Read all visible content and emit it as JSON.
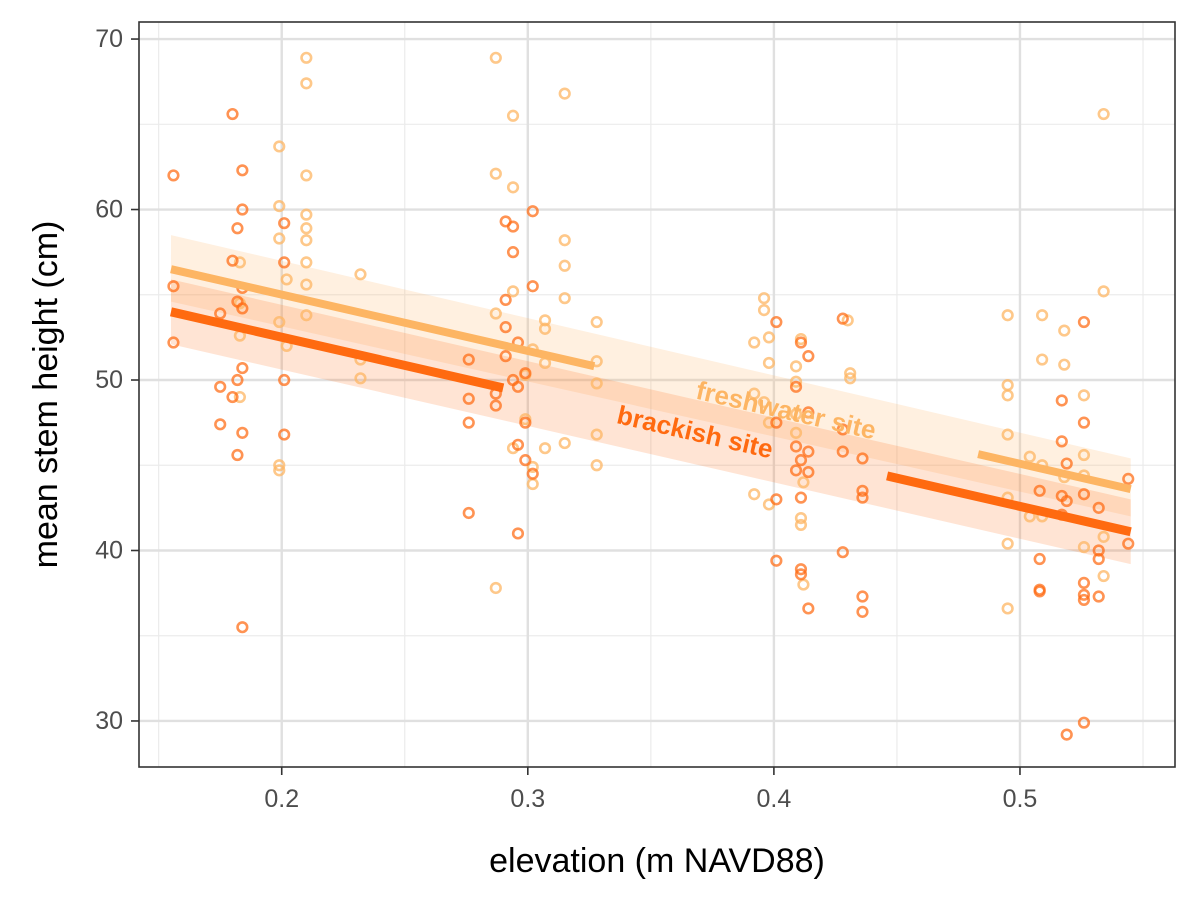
{
  "chart_data": {
    "type": "scatter",
    "title": "",
    "xlabel": "elevation (m NAVD88)",
    "ylabel": "mean stem height (cm)",
    "xlim": [
      0.142,
      0.563
    ],
    "ylim": [
      27.3,
      71.0
    ],
    "x_ticks": [
      0.2,
      0.3,
      0.4,
      0.5
    ],
    "x_tick_labels": [
      "0.2",
      "0.3",
      "0.4",
      "0.5"
    ],
    "y_ticks": [
      30,
      40,
      50,
      60,
      70
    ],
    "y_tick_labels": [
      "30",
      "40",
      "50",
      "60",
      "70"
    ],
    "grid": true,
    "legend": "none (series labelled directly on the lines)",
    "series": [
      {
        "name": "freshwater site",
        "color": "#fdb563",
        "fit": {
          "x": [
            0.155,
            0.545
          ],
          "y": [
            56.5,
            43.6
          ]
        },
        "ci_band": {
          "x": [
            0.155,
            0.545
          ],
          "lower": [
            54.6,
            42.0
          ],
          "upper": [
            58.5,
            45.4
          ]
        },
        "points": [
          [
            0.183,
            56.9
          ],
          [
            0.183,
            52.6
          ],
          [
            0.183,
            54.5
          ],
          [
            0.183,
            49.0
          ],
          [
            0.199,
            63.7
          ],
          [
            0.199,
            60.2
          ],
          [
            0.199,
            58.3
          ],
          [
            0.199,
            53.4
          ],
          [
            0.199,
            45.0
          ],
          [
            0.199,
            44.7
          ],
          [
            0.202,
            55.9
          ],
          [
            0.202,
            52.0
          ],
          [
            0.21,
            68.9
          ],
          [
            0.21,
            67.4
          ],
          [
            0.21,
            62.0
          ],
          [
            0.21,
            59.7
          ],
          [
            0.21,
            58.9
          ],
          [
            0.21,
            58.2
          ],
          [
            0.21,
            56.9
          ],
          [
            0.21,
            55.6
          ],
          [
            0.21,
            53.8
          ],
          [
            0.232,
            56.2
          ],
          [
            0.232,
            51.2
          ],
          [
            0.232,
            50.1
          ],
          [
            0.287,
            68.9
          ],
          [
            0.287,
            62.1
          ],
          [
            0.287,
            53.9
          ],
          [
            0.287,
            37.8
          ],
          [
            0.294,
            65.5
          ],
          [
            0.294,
            61.3
          ],
          [
            0.294,
            55.2
          ],
          [
            0.294,
            46.0
          ],
          [
            0.299,
            50.3
          ],
          [
            0.299,
            47.7
          ],
          [
            0.302,
            51.8
          ],
          [
            0.302,
            44.9
          ],
          [
            0.302,
            43.9
          ],
          [
            0.307,
            53.5
          ],
          [
            0.307,
            53.0
          ],
          [
            0.307,
            51.0
          ],
          [
            0.307,
            46.0
          ],
          [
            0.315,
            66.8
          ],
          [
            0.315,
            58.2
          ],
          [
            0.315,
            56.7
          ],
          [
            0.315,
            54.8
          ],
          [
            0.315,
            46.3
          ],
          [
            0.328,
            53.4
          ],
          [
            0.328,
            51.1
          ],
          [
            0.328,
            49.8
          ],
          [
            0.328,
            46.8
          ],
          [
            0.328,
            45.0
          ],
          [
            0.392,
            52.2
          ],
          [
            0.392,
            49.2
          ],
          [
            0.392,
            43.3
          ],
          [
            0.396,
            54.8
          ],
          [
            0.396,
            54.1
          ],
          [
            0.396,
            48.7
          ],
          [
            0.398,
            52.5
          ],
          [
            0.398,
            51.0
          ],
          [
            0.398,
            47.5
          ],
          [
            0.398,
            42.7
          ],
          [
            0.409,
            50.8
          ],
          [
            0.409,
            49.9
          ],
          [
            0.409,
            48.0
          ],
          [
            0.409,
            46.9
          ],
          [
            0.411,
            52.4
          ],
          [
            0.411,
            41.9
          ],
          [
            0.411,
            41.5
          ],
          [
            0.412,
            44.0
          ],
          [
            0.412,
            38.0
          ],
          [
            0.43,
            53.5
          ],
          [
            0.431,
            50.4
          ],
          [
            0.431,
            50.1
          ],
          [
            0.495,
            53.8
          ],
          [
            0.495,
            49.7
          ],
          [
            0.495,
            49.1
          ],
          [
            0.495,
            46.8
          ],
          [
            0.495,
            43.1
          ],
          [
            0.495,
            40.4
          ],
          [
            0.495,
            36.6
          ],
          [
            0.504,
            45.5
          ],
          [
            0.504,
            42.0
          ],
          [
            0.509,
            53.8
          ],
          [
            0.509,
            51.2
          ],
          [
            0.509,
            45.0
          ],
          [
            0.509,
            42.0
          ],
          [
            0.518,
            52.9
          ],
          [
            0.518,
            50.9
          ],
          [
            0.518,
            44.3
          ],
          [
            0.526,
            49.1
          ],
          [
            0.526,
            45.6
          ],
          [
            0.526,
            44.4
          ],
          [
            0.526,
            40.2
          ],
          [
            0.534,
            65.6
          ],
          [
            0.534,
            55.2
          ],
          [
            0.534,
            40.8
          ],
          [
            0.534,
            38.5
          ]
        ]
      },
      {
        "name": "brackish site",
        "color": "#ff6a10",
        "fit": {
          "x": [
            0.155,
            0.545
          ],
          "y": [
            54.0,
            41.1
          ]
        },
        "ci_band": {
          "x": [
            0.155,
            0.545
          ],
          "lower": [
            52.1,
            39.2
          ],
          "upper": [
            55.9,
            43.0
          ]
        },
        "points": [
          [
            0.156,
            62.0
          ],
          [
            0.156,
            55.5
          ],
          [
            0.156,
            52.2
          ],
          [
            0.175,
            53.9
          ],
          [
            0.175,
            49.6
          ],
          [
            0.175,
            47.4
          ],
          [
            0.18,
            65.6
          ],
          [
            0.18,
            57.0
          ],
          [
            0.18,
            49.0
          ],
          [
            0.182,
            58.9
          ],
          [
            0.182,
            54.6
          ],
          [
            0.182,
            50.0
          ],
          [
            0.182,
            45.6
          ],
          [
            0.184,
            62.3
          ],
          [
            0.184,
            60.0
          ],
          [
            0.184,
            55.4
          ],
          [
            0.184,
            54.2
          ],
          [
            0.184,
            50.7
          ],
          [
            0.184,
            46.9
          ],
          [
            0.184,
            35.5
          ],
          [
            0.201,
            59.2
          ],
          [
            0.201,
            56.9
          ],
          [
            0.201,
            50.0
          ],
          [
            0.201,
            46.8
          ],
          [
            0.276,
            51.2
          ],
          [
            0.276,
            48.9
          ],
          [
            0.276,
            47.5
          ],
          [
            0.276,
            42.2
          ],
          [
            0.287,
            49.2
          ],
          [
            0.287,
            48.5
          ],
          [
            0.291,
            59.3
          ],
          [
            0.291,
            54.7
          ],
          [
            0.291,
            53.1
          ],
          [
            0.291,
            51.4
          ],
          [
            0.294,
            59.0
          ],
          [
            0.294,
            57.5
          ],
          [
            0.294,
            50.0
          ],
          [
            0.296,
            52.2
          ],
          [
            0.296,
            49.6
          ],
          [
            0.296,
            46.2
          ],
          [
            0.296,
            41.0
          ],
          [
            0.299,
            50.4
          ],
          [
            0.299,
            47.5
          ],
          [
            0.299,
            45.3
          ],
          [
            0.302,
            59.9
          ],
          [
            0.302,
            55.5
          ],
          [
            0.302,
            44.5
          ],
          [
            0.401,
            53.4
          ],
          [
            0.401,
            47.5
          ],
          [
            0.401,
            43.0
          ],
          [
            0.401,
            39.4
          ],
          [
            0.409,
            49.6
          ],
          [
            0.409,
            46.1
          ],
          [
            0.409,
            44.7
          ],
          [
            0.411,
            52.2
          ],
          [
            0.411,
            45.3
          ],
          [
            0.411,
            43.1
          ],
          [
            0.411,
            38.9
          ],
          [
            0.411,
            38.6
          ],
          [
            0.414,
            51.4
          ],
          [
            0.414,
            48.1
          ],
          [
            0.414,
            45.8
          ],
          [
            0.414,
            44.6
          ],
          [
            0.414,
            36.6
          ],
          [
            0.428,
            53.6
          ],
          [
            0.428,
            47.1
          ],
          [
            0.428,
            45.8
          ],
          [
            0.428,
            39.9
          ],
          [
            0.436,
            45.4
          ],
          [
            0.436,
            43.5
          ],
          [
            0.436,
            43.1
          ],
          [
            0.436,
            37.3
          ],
          [
            0.436,
            36.4
          ],
          [
            0.508,
            43.5
          ],
          [
            0.508,
            39.5
          ],
          [
            0.508,
            37.7
          ],
          [
            0.508,
            37.6
          ],
          [
            0.517,
            48.8
          ],
          [
            0.517,
            46.4
          ],
          [
            0.517,
            43.2
          ],
          [
            0.517,
            42.1
          ],
          [
            0.519,
            45.1
          ],
          [
            0.519,
            42.9
          ],
          [
            0.519,
            29.2
          ],
          [
            0.526,
            53.4
          ],
          [
            0.526,
            47.5
          ],
          [
            0.526,
            43.3
          ],
          [
            0.526,
            38.1
          ],
          [
            0.526,
            37.4
          ],
          [
            0.526,
            37.1
          ],
          [
            0.526,
            29.9
          ],
          [
            0.532,
            42.5
          ],
          [
            0.532,
            40.0
          ],
          [
            0.532,
            39.5
          ],
          [
            0.532,
            37.3
          ],
          [
            0.544,
            44.2
          ],
          [
            0.544,
            40.4
          ]
        ]
      }
    ]
  }
}
